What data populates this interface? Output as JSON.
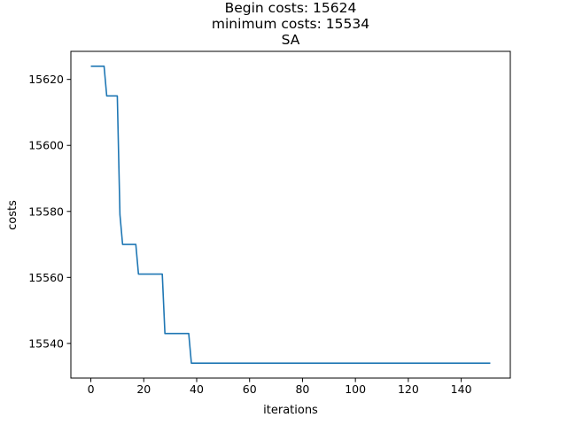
{
  "chart_data": {
    "type": "line",
    "title_lines": [
      "Begin costs: 15624",
      "minimum costs: 15534",
      "SA"
    ],
    "xlabel": "iterations",
    "ylabel": "costs",
    "xlim": [
      -7.55,
      158.55
    ],
    "ylim": [
      15529.5,
      15628.5
    ],
    "xticks": [
      0,
      20,
      40,
      60,
      80,
      100,
      120,
      140
    ],
    "yticks": [
      15540,
      15560,
      15580,
      15600,
      15620
    ],
    "grid": false,
    "line_color": "#1f77b4",
    "series": [
      {
        "x": [
          0,
          5,
          6,
          10,
          11,
          12,
          17,
          18,
          27,
          28,
          37,
          38,
          151
        ],
        "y": [
          15624,
          15624,
          15615,
          15615,
          15579,
          15570,
          15570,
          15561,
          15561,
          15543,
          15543,
          15534,
          15534
        ]
      }
    ]
  }
}
